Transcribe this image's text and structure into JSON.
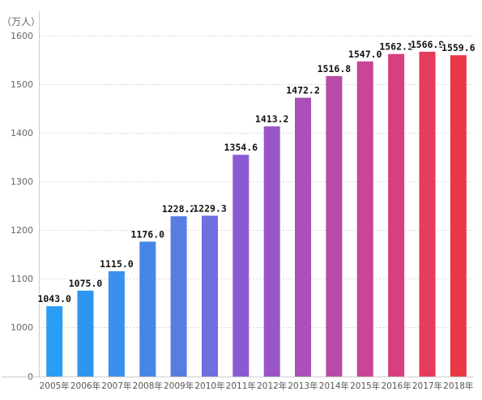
{
  "chart_data": {
    "type": "bar",
    "title": "",
    "xlabel": "",
    "ylabel": "（万人）",
    "categories": [
      "2005年",
      "2006年",
      "2007年",
      "2008年",
      "2009年",
      "2010年",
      "2011年",
      "2012年",
      "2013年",
      "2014年",
      "2015年",
      "2016年",
      "2017年",
      "2018年"
    ],
    "series": [
      {
        "values": [
          1043.0,
          1075.0,
          1115.0,
          1176.0,
          1228.2,
          1229.3,
          1354.6,
          1413.2,
          1472.2,
          1516.8,
          1547.0,
          1562.1,
          1566.9,
          1559.6
        ],
        "data_labels": [
          "1043.0",
          "1075.0",
          "1115.0",
          "1176.0",
          "1228.2",
          "1229.3",
          "1354.6",
          "1413.2",
          "1472.2",
          "1516.8",
          "1547.0",
          "1562.1",
          "1566.9",
          "1559.6"
        ],
        "colors": [
          "#2a9df4",
          "#2c96f0",
          "#3a90ec",
          "#4786e6",
          "#587ce2",
          "#6f6fde",
          "#8a5ad2",
          "#9a55c8",
          "#aa50b8",
          "#b94aa6",
          "#c94595",
          "#d83f80",
          "#e53b5c",
          "#ea3844"
        ]
      }
    ],
    "y_tick_labels": [
      "0",
      "1000",
      "1100",
      "1200",
      "1300",
      "1400",
      "1500",
      "1600"
    ],
    "ylim": [
      960,
      1635
    ],
    "axis_break": "y axis jumps from 0 to 1000",
    "grid": "horizontal dotted",
    "legend": "none"
  }
}
